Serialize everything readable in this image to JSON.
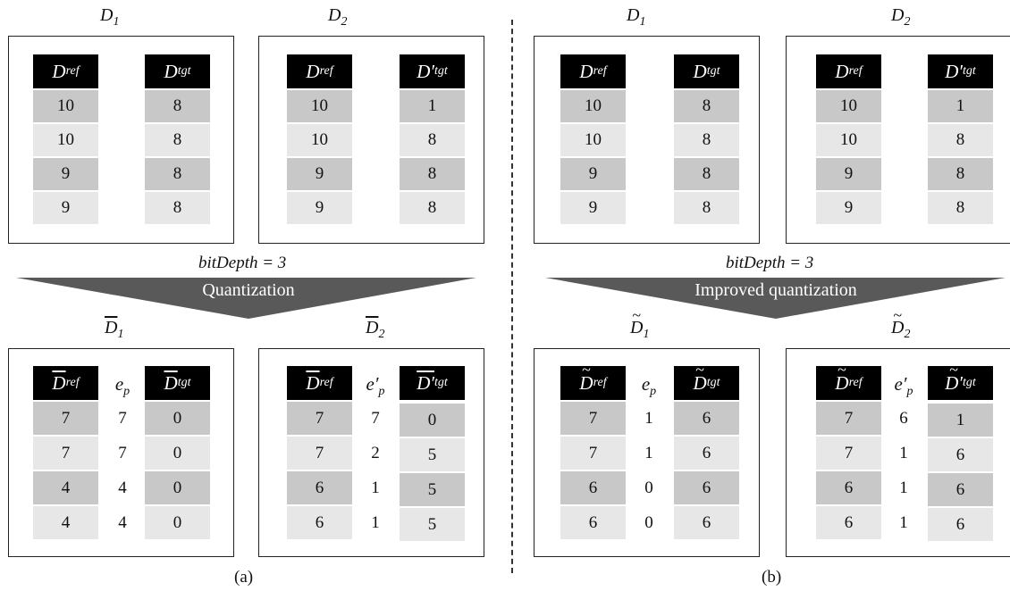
{
  "panel_a": {
    "d1_title": "D",
    "d1_sub": "1",
    "d2_title": "D",
    "d2_sub": "2",
    "d1_table": {
      "ref_header": "D",
      "ref_sub": "ref",
      "tgt_header": "D",
      "tgt_sub": "tgt",
      "ref": [
        "10",
        "10",
        "9",
        "9"
      ],
      "tgt": [
        "8",
        "8",
        "8",
        "8"
      ]
    },
    "d2_table": {
      "ref_header": "D",
      "ref_sub": "ref",
      "tgt_header": "D′",
      "tgt_sub": "tgt",
      "ref": [
        "10",
        "10",
        "9",
        "9"
      ],
      "tgt": [
        "1",
        "8",
        "8",
        "8"
      ]
    },
    "bitdepth": "bitDepth = 3",
    "arrow_label": "Quantization",
    "q1_title": "D",
    "q1_sub": "1",
    "q2_title": "D",
    "q2_sub": "2",
    "q1_table": {
      "ref_header": "D",
      "ref_sub": "ref",
      "ep_header": "e",
      "ep_sub": "p",
      "tgt_header": "D",
      "tgt_sub": "tgt",
      "ref": [
        "7",
        "7",
        "4",
        "4"
      ],
      "ep": [
        "7",
        "7",
        "4",
        "4"
      ],
      "tgt": [
        "0",
        "0",
        "0",
        "0"
      ]
    },
    "q2_table": {
      "ref_header": "D",
      "ref_sub": "ref",
      "ep_header": "e′",
      "ep_sub": "p",
      "tgt_header": "D′",
      "tgt_sub": "tgt",
      "ref": [
        "7",
        "7",
        "6",
        "6"
      ],
      "ep": [
        "7",
        "2",
        "1",
        "1"
      ],
      "tgt": [
        "0",
        "5",
        "5",
        "5"
      ]
    },
    "caption": "(a)"
  },
  "panel_b": {
    "d1_title": "D",
    "d1_sub": "1",
    "d2_title": "D",
    "d2_sub": "2",
    "d1_table": {
      "ref_header": "D",
      "ref_sub": "ref",
      "tgt_header": "D",
      "tgt_sub": "tgt",
      "ref": [
        "10",
        "10",
        "9",
        "9"
      ],
      "tgt": [
        "8",
        "8",
        "8",
        "8"
      ]
    },
    "d2_table": {
      "ref_header": "D",
      "ref_sub": "ref",
      "tgt_header": "D′",
      "tgt_sub": "tgt",
      "ref": [
        "10",
        "10",
        "9",
        "9"
      ],
      "tgt": [
        "1",
        "8",
        "8",
        "8"
      ]
    },
    "bitdepth": "bitDepth = 3",
    "arrow_label": "Improved quantization",
    "q1_title": "D",
    "q1_sub": "1",
    "q2_title": "D",
    "q2_sub": "2",
    "q1_table": {
      "ref_header": "D",
      "ref_sub": "ref",
      "ep_header": "e",
      "ep_sub": "p",
      "tgt_header": "D",
      "tgt_sub": "tgt",
      "ref": [
        "7",
        "7",
        "6",
        "6"
      ],
      "ep": [
        "1",
        "1",
        "0",
        "0"
      ],
      "tgt": [
        "6",
        "6",
        "6",
        "6"
      ]
    },
    "q2_table": {
      "ref_header": "D",
      "ref_sub": "ref",
      "ep_header": "e′",
      "ep_sub": "p",
      "tgt_header": "D′",
      "tgt_sub": "tgt",
      "ref": [
        "7",
        "7",
        "6",
        "6"
      ],
      "ep": [
        "6",
        "1",
        "1",
        "1"
      ],
      "tgt": [
        "1",
        "6",
        "6",
        "6"
      ]
    },
    "caption": "(b)"
  },
  "colors": {
    "header_bg": "#000000",
    "row_dark": "#c8c8c8",
    "row_light": "#e7e7e7",
    "arrow": "#595959"
  }
}
